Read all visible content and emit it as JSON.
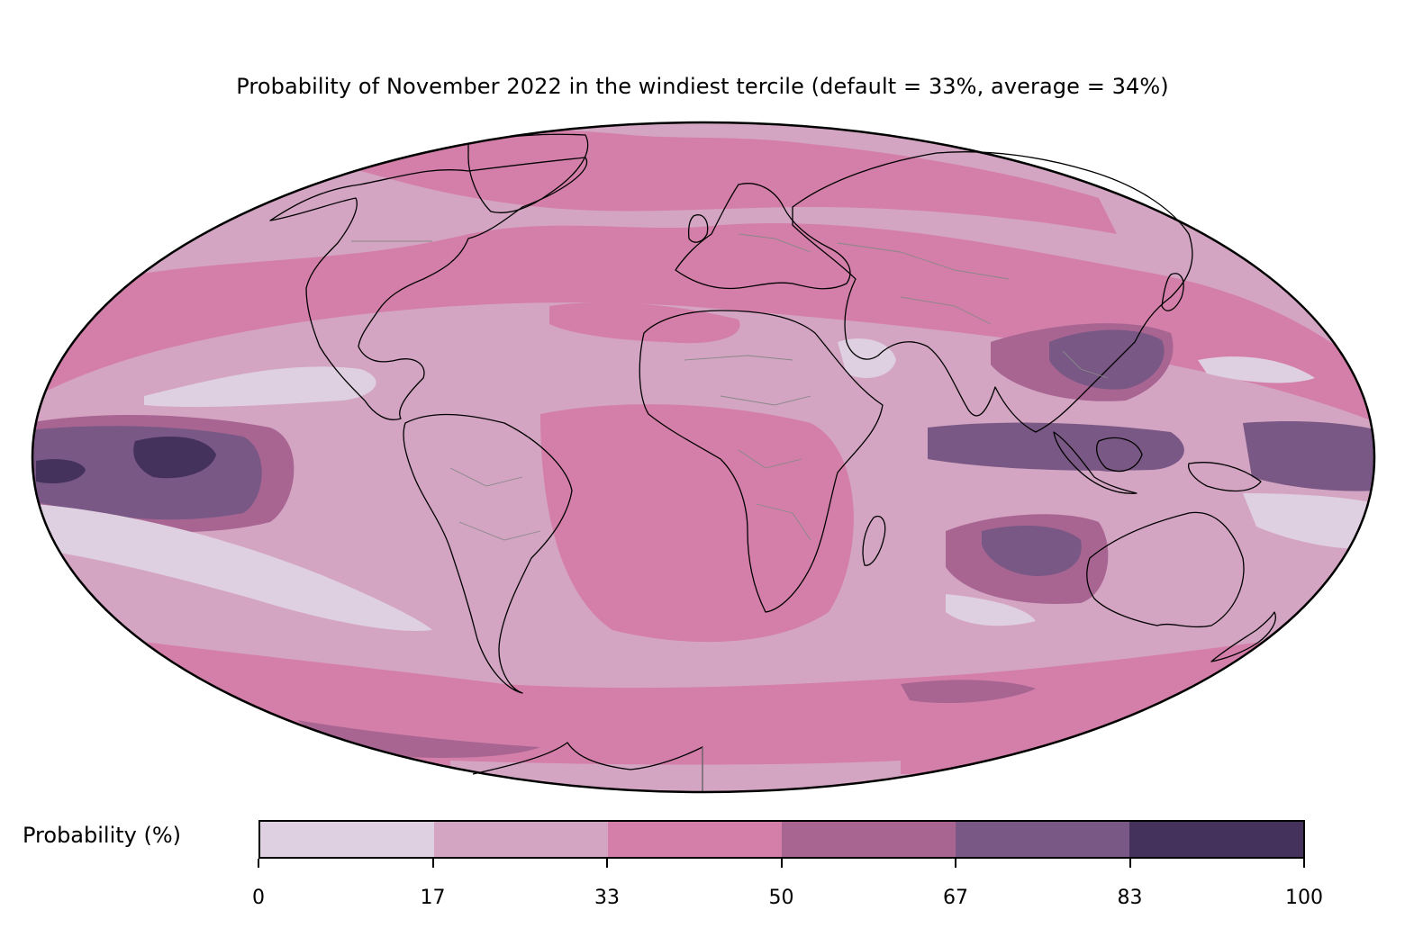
{
  "title": "Probability of November 2022 in the windiest tercile (default = 33%, average = 34%)",
  "projection": "mollweide",
  "colorbar": {
    "label": "Probability (%)",
    "ticks": [
      "0",
      "17",
      "33",
      "50",
      "67",
      "83",
      "100"
    ],
    "bins": [
      {
        "range": [
          0,
          17
        ],
        "color": "#dfd0e1"
      },
      {
        "range": [
          17,
          33
        ],
        "color": "#d4a5c3"
      },
      {
        "range": [
          33,
          50
        ],
        "color": "#d47fa9"
      },
      {
        "range": [
          50,
          67
        ],
        "color": "#a86592"
      },
      {
        "range": [
          67,
          83
        ],
        "color": "#795885"
      },
      {
        "range": [
          83,
          100
        ],
        "color": "#44325c"
      }
    ]
  },
  "colors": {
    "ocean_base": "#d4a5c3",
    "coastline": "#000000",
    "borders": "#888888"
  }
}
